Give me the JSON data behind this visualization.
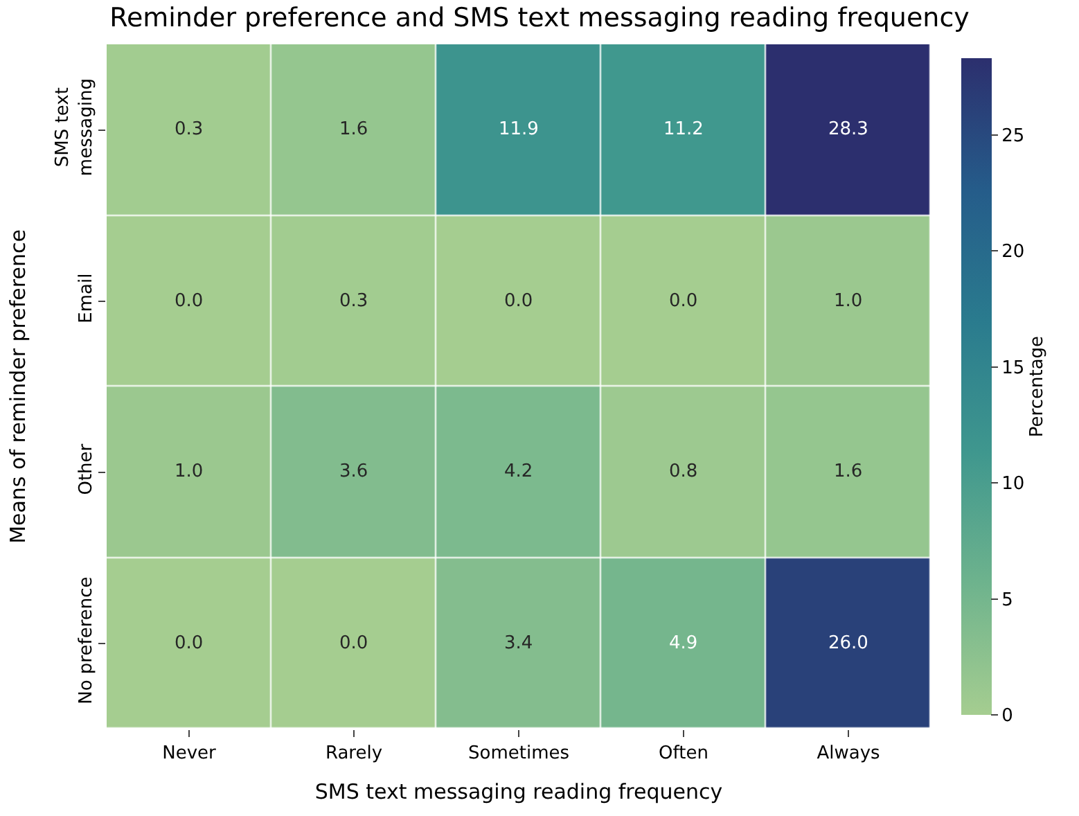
{
  "chart_data": {
    "type": "heatmap",
    "title": "Reminder preference and SMS text messaging reading frequency",
    "xlabel": "SMS text messaging reading frequency",
    "ylabel": "Means of reminder preference",
    "clabel": "Percentage",
    "categories": [
      "Never",
      "Rarely",
      "Sometimes",
      "Often",
      "Always"
    ],
    "y_categories": [
      "SMS text\nmessaging",
      "Email",
      "Other",
      "No preference"
    ],
    "cells": [
      [
        0.3,
        1.6,
        11.9,
        11.2,
        28.3
      ],
      [
        0.0,
        0.3,
        0.0,
        0.0,
        1.0
      ],
      [
        1.0,
        3.6,
        4.2,
        0.8,
        1.6
      ],
      [
        0.0,
        0.0,
        3.4,
        4.9,
        26.0
      ]
    ],
    "cell_labels": [
      [
        "0.3",
        "1.6",
        "11.9",
        "11.2",
        "28.3"
      ],
      [
        "0.0",
        "0.3",
        "0.0",
        "0.0",
        "1.0"
      ],
      [
        "1.0",
        "3.6",
        "4.2",
        "0.8",
        "1.6"
      ],
      [
        "0.0",
        "0.0",
        "3.4",
        "4.9",
        "26.0"
      ]
    ],
    "clim": [
      0,
      28.3
    ],
    "cticks": [
      0,
      5,
      10,
      15,
      20,
      25
    ]
  }
}
